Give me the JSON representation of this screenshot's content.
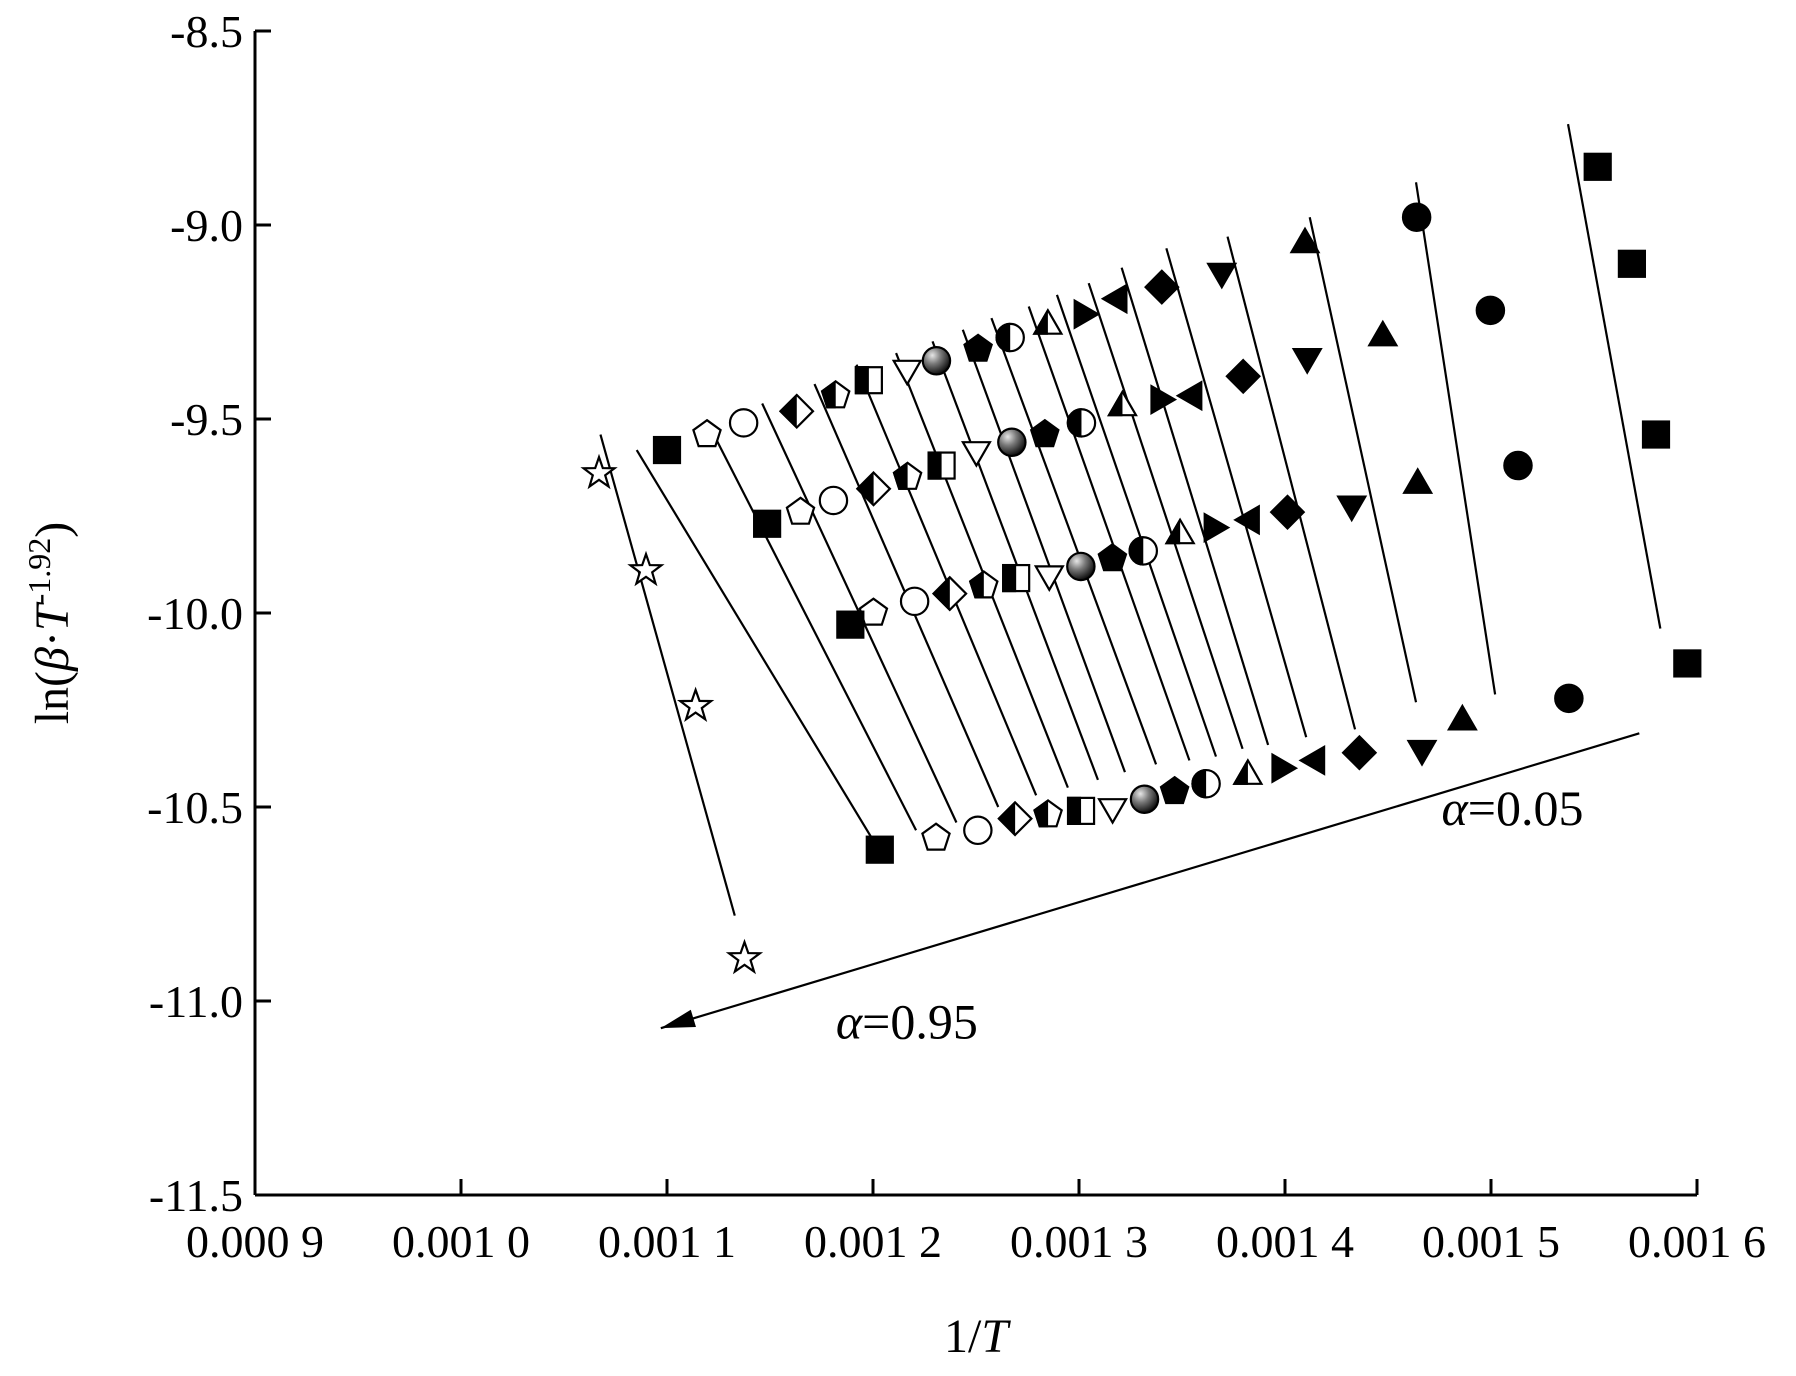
{
  "chart_data": {
    "type": "scatter",
    "title": "",
    "xlabel": "1/",
    "xlabel_italic": "T",
    "ylabel": "ln(",
    "ylabel_beta": "β",
    "ylabel_mid": "·",
    "ylabel_T": "T",
    "ylabel_exp": "-1.92",
    "ylabel_close": ")",
    "xlim": [
      0.0009,
      0.0016
    ],
    "ylim": [
      -11.5,
      -8.5
    ],
    "x_ticks": [
      0.0009,
      0.001,
      0.0011,
      0.0012,
      0.0013,
      0.0014,
      0.0015,
      0.0016
    ],
    "x_tick_labels": [
      "0.000 9",
      "0.001 0",
      "0.001 1",
      "0.001 2",
      "0.001 3",
      "0.001 4",
      "0.001 5",
      "0.001 6"
    ],
    "y_ticks": [
      -8.5,
      -9.0,
      -9.5,
      -10.0,
      -10.5,
      -11.0,
      -11.5
    ],
    "y_tick_labels": [
      "-8.5",
      "-9.0",
      "-9.5",
      "-10.0",
      "-10.5",
      "-11.0",
      "-11.5"
    ],
    "grid": false,
    "legend": "none",
    "annotations": [
      {
        "label_italic": "α",
        "label_rest": "=0.05",
        "x": 0.001476,
        "y": -10.5
      },
      {
        "label_italic": "α",
        "label_rest": "=0.95",
        "x": 0.001182,
        "y": -11.05
      }
    ],
    "arrow": {
      "from": [
        0.001572,
        -10.31
      ],
      "to": [
        0.001097,
        -11.07
      ]
    },
    "series": [
      {
        "marker": "square",
        "fill": "black",
        "line": [
          [
            0.0015374,
            -8.74
          ],
          [
            0.0015822,
            -10.04
          ]
        ],
        "points": [
          [
            0.0015518,
            -8.85
          ],
          [
            0.0015684,
            -9.1
          ],
          [
            0.0015801,
            -9.54
          ],
          [
            0.0015953,
            -10.13
          ]
        ]
      },
      {
        "marker": "circle",
        "fill": "black",
        "line": [
          [
            0.0014636,
            -8.89
          ],
          [
            0.001502,
            -10.21
          ]
        ],
        "points": [
          [
            0.0014639,
            -8.98
          ],
          [
            0.0014997,
            -9.22
          ],
          [
            0.0015131,
            -9.62
          ],
          [
            0.0015378,
            -10.22
          ]
        ]
      },
      {
        "marker": "triangle-up",
        "fill": "black",
        "line": [
          [
            0.001412,
            -8.98
          ],
          [
            0.0014636,
            -10.23
          ]
        ],
        "points": [
          [
            0.0014097,
            -9.05
          ],
          [
            0.0014475,
            -9.29
          ],
          [
            0.0014644,
            -9.67
          ],
          [
            0.0014861,
            -10.28
          ]
        ]
      },
      {
        "marker": "triangle-down",
        "fill": "black",
        "line": [
          [
            0.0013721,
            -9.03
          ],
          [
            0.001434,
            -10.3
          ]
        ],
        "points": [
          [
            0.0013693,
            -9.12
          ],
          [
            0.0014108,
            -9.34
          ],
          [
            0.0014324,
            -9.72
          ],
          [
            0.0014665,
            -10.35
          ]
        ]
      },
      {
        "marker": "diamond",
        "fill": "black",
        "line": [
          [
            0.0013424,
            -9.06
          ],
          [
            0.0014103,
            -10.32
          ]
        ],
        "points": [
          [
            0.0013402,
            -9.16
          ],
          [
            0.0013797,
            -9.39
          ],
          [
            0.0014012,
            -9.74
          ],
          [
            0.0014361,
            -10.36
          ]
        ]
      },
      {
        "marker": "triangle-left",
        "fill": "black",
        "line": [
          [
            0.0013207,
            -9.11
          ],
          [
            0.0013918,
            -10.34
          ]
        ],
        "points": [
          [
            0.0013192,
            -9.19
          ],
          [
            0.0013556,
            -9.44
          ],
          [
            0.0013835,
            -9.76
          ],
          [
            0.0014152,
            -10.38
          ]
        ]
      },
      {
        "marker": "triangle-right",
        "fill": "black",
        "line": [
          [
            0.0013047,
            -9.15
          ],
          [
            0.0013794,
            -10.35
          ]
        ],
        "points": [
          [
            0.0013017,
            -9.23
          ],
          [
            0.001339,
            -9.45
          ],
          [
            0.0013648,
            -9.78
          ],
          [
            0.0013977,
            -10.4
          ]
        ]
      },
      {
        "marker": "triangle-up",
        "fill": "half",
        "line": [
          [
            0.0012893,
            -9.18
          ],
          [
            0.0013665,
            -10.37
          ]
        ],
        "points": [
          [
            0.0012849,
            -9.26
          ],
          [
            0.0013211,
            -9.47
          ],
          [
            0.0013491,
            -9.8
          ],
          [
            0.001382,
            -10.42
          ]
        ]
      },
      {
        "marker": "circle",
        "fill": "half",
        "line": [
          [
            0.0012756,
            -9.21
          ],
          [
            0.0013536,
            -10.38
          ]
        ],
        "points": [
          [
            0.0012666,
            -9.29
          ],
          [
            0.0013012,
            -9.51
          ],
          [
            0.0013312,
            -9.84
          ],
          [
            0.0013617,
            -10.44
          ]
        ]
      },
      {
        "marker": "pentagon",
        "fill": "black",
        "line": [
          [
            0.0012575,
            -9.24
          ],
          [
            0.0013374,
            -10.39
          ]
        ],
        "points": [
          [
            0.001251,
            -9.32
          ],
          [
            0.0012834,
            -9.54
          ],
          [
            0.0013162,
            -9.86
          ],
          [
            0.0013464,
            -10.46
          ]
        ]
      },
      {
        "marker": "sphere",
        "fill": "gray",
        "line": [
          [
            0.0012436,
            -9.27
          ],
          [
            0.0013223,
            -10.41
          ]
        ],
        "points": [
          [
            0.0012308,
            -9.35
          ],
          [
            0.0012674,
            -9.56
          ],
          [
            0.0013009,
            -9.88
          ],
          [
            0.0013318,
            -10.48
          ]
        ]
      },
      {
        "marker": "triangle-down",
        "fill": "open",
        "line": [
          [
            0.0012289,
            -9.3
          ],
          [
            0.0013092,
            -10.43
          ]
        ],
        "points": [
          [
            0.0012166,
            -9.37
          ],
          [
            0.0012502,
            -9.58
          ],
          [
            0.0012856,
            -9.9
          ],
          [
            0.0013163,
            -10.5
          ]
        ]
      },
      {
        "marker": "square",
        "fill": "half",
        "line": [
          [
            0.0012112,
            -9.33
          ],
          [
            0.0012946,
            -10.45
          ]
        ],
        "points": [
          [
            0.001198,
            -9.4
          ],
          [
            0.0012333,
            -9.62
          ],
          [
            0.0012695,
            -9.91
          ],
          [
            0.001301,
            -10.51
          ]
        ]
      },
      {
        "marker": "pentagon",
        "fill": "half",
        "line": [
          [
            0.001192,
            -9.36
          ],
          [
            0.0012792,
            -10.47
          ]
        ],
        "points": [
          [
            0.0011819,
            -9.44
          ],
          [
            0.0012168,
            -9.65
          ],
          [
            0.0012538,
            -9.93
          ],
          [
            0.001285,
            -10.52
          ]
        ]
      },
      {
        "marker": "diamond",
        "fill": "half",
        "line": [
          [
            0.0011716,
            -9.41
          ],
          [
            0.0012608,
            -10.5
          ]
        ],
        "points": [
          [
            0.001163,
            -9.48
          ],
          [
            0.0012003,
            -9.68
          ],
          [
            0.0012373,
            -9.95
          ],
          [
            0.001269,
            -10.53
          ]
        ]
      },
      {
        "marker": "circle",
        "fill": "open",
        "line": [
          [
            0.0011462,
            -9.46
          ],
          [
            0.0012405,
            -10.54
          ]
        ],
        "points": [
          [
            0.0011372,
            -9.51
          ],
          [
            0.0011808,
            -9.71
          ],
          [
            0.0012202,
            -9.97
          ],
          [
            0.0012509,
            -10.56
          ]
        ]
      },
      {
        "marker": "pentagon",
        "fill": "open",
        "line": [
          [
            0.0011198,
            -9.51
          ],
          [
            0.0012209,
            -10.56
          ]
        ],
        "points": [
          [
            0.0011194,
            -9.54
          ],
          [
            0.0011648,
            -9.74
          ],
          [
            0.0012002,
            -10.0
          ],
          [
            0.0012306,
            -10.58
          ]
        ]
      },
      {
        "marker": "square",
        "fill": "black",
        "line": [
          [
            0.0010853,
            -9.58
          ],
          [
            0.0011994,
            -10.58
          ]
        ],
        "points": [
          [
            0.0011,
            -9.58
          ],
          [
            0.0011486,
            -9.77
          ],
          [
            0.001189,
            -10.03
          ],
          [
            0.0012033,
            -10.61
          ]
        ]
      },
      {
        "marker": "star",
        "fill": "open",
        "line": [
          [
            0.0010677,
            -9.54
          ],
          [
            0.0011329,
            -10.78
          ]
        ],
        "points": [
          [
            0.001067,
            -9.64
          ],
          [
            0.0010898,
            -9.89
          ],
          [
            0.0011139,
            -10.24
          ],
          [
            0.0011376,
            -10.89
          ]
        ]
      }
    ]
  }
}
